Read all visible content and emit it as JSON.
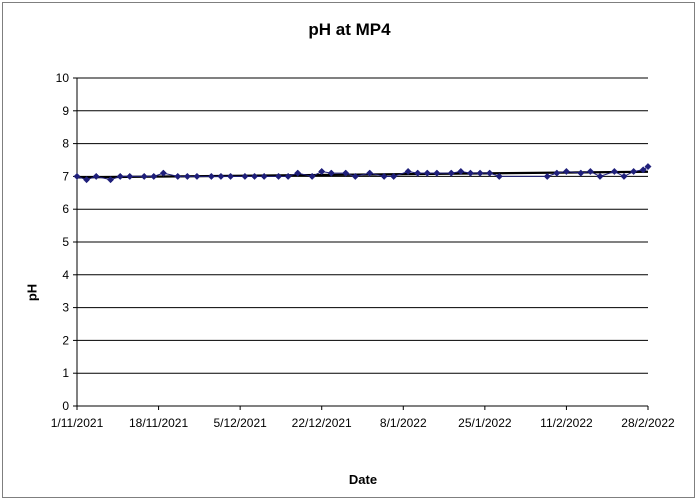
{
  "chart_data": {
    "type": "scatter",
    "title": "pH at MP4",
    "xlabel": "Date",
    "ylabel": "pH",
    "ylim": [
      0,
      10
    ],
    "y_ticks": [
      "0",
      "1",
      "2",
      "3",
      "4",
      "5",
      "6",
      "7",
      "8",
      "9",
      "10"
    ],
    "xlim": [
      "2021-11-01",
      "2022-02-28"
    ],
    "x_tick_dates": [
      "2021-11-01",
      "2021-11-18",
      "2021-12-05",
      "2021-12-22",
      "2022-01-08",
      "2022-01-25",
      "2022-02-11",
      "2022-02-28"
    ],
    "x_tick_labels": [
      "1/11/2021",
      "18/11/2021",
      "5/12/2021",
      "22/12/2021",
      "8/1/2022",
      "25/1/2022",
      "11/2/2022",
      "28/2/2022"
    ],
    "grid": "horizontal",
    "legend": "none",
    "marker_color": "#1f1f7a",
    "trendline": {
      "type": "linear",
      "color": "#000000"
    },
    "series": [
      {
        "points": [
          [
            "2021-11-01",
            7.0
          ],
          [
            "2021-11-03",
            6.9
          ],
          [
            "2021-11-05",
            7.0
          ],
          [
            "2021-11-08",
            6.9
          ],
          [
            "2021-11-10",
            7.0
          ],
          [
            "2021-11-12",
            7.0
          ],
          [
            "2021-11-15",
            7.0
          ],
          [
            "2021-11-17",
            7.0
          ],
          [
            "2021-11-19",
            7.1
          ],
          [
            "2021-11-22",
            7.0
          ],
          [
            "2021-11-24",
            7.0
          ],
          [
            "2021-11-26",
            7.0
          ],
          [
            "2021-11-29",
            7.0
          ],
          [
            "2021-12-01",
            7.0
          ],
          [
            "2021-12-03",
            7.0
          ],
          [
            "2021-12-06",
            7.0
          ],
          [
            "2021-12-08",
            7.0
          ],
          [
            "2021-12-10",
            7.0
          ],
          [
            "2021-12-13",
            7.0
          ],
          [
            "2021-12-15",
            7.0
          ],
          [
            "2021-12-17",
            7.1
          ],
          [
            "2021-12-20",
            7.0
          ],
          [
            "2021-12-22",
            7.15
          ],
          [
            "2021-12-24",
            7.1
          ],
          [
            "2021-12-27",
            7.1
          ],
          [
            "2021-12-29",
            7.0
          ],
          [
            "2022-01-01",
            7.1
          ],
          [
            "2022-01-04",
            7.0
          ],
          [
            "2022-01-06",
            7.0
          ],
          [
            "2022-01-09",
            7.15
          ],
          [
            "2022-01-11",
            7.1
          ],
          [
            "2022-01-13",
            7.1
          ],
          [
            "2022-01-15",
            7.1
          ],
          [
            "2022-01-18",
            7.1
          ],
          [
            "2022-01-20",
            7.15
          ],
          [
            "2022-01-22",
            7.1
          ],
          [
            "2022-01-24",
            7.1
          ],
          [
            "2022-01-26",
            7.1
          ],
          [
            "2022-01-28",
            7.0
          ],
          [
            "2022-02-07",
            7.0
          ],
          [
            "2022-02-09",
            7.1
          ],
          [
            "2022-02-11",
            7.15
          ],
          [
            "2022-02-14",
            7.1
          ],
          [
            "2022-02-16",
            7.15
          ],
          [
            "2022-02-18",
            7.0
          ],
          [
            "2022-02-21",
            7.15
          ],
          [
            "2022-02-23",
            7.0
          ],
          [
            "2022-02-25",
            7.15
          ],
          [
            "2022-02-27",
            7.2
          ],
          [
            "2022-02-28",
            7.3
          ]
        ]
      }
    ]
  }
}
